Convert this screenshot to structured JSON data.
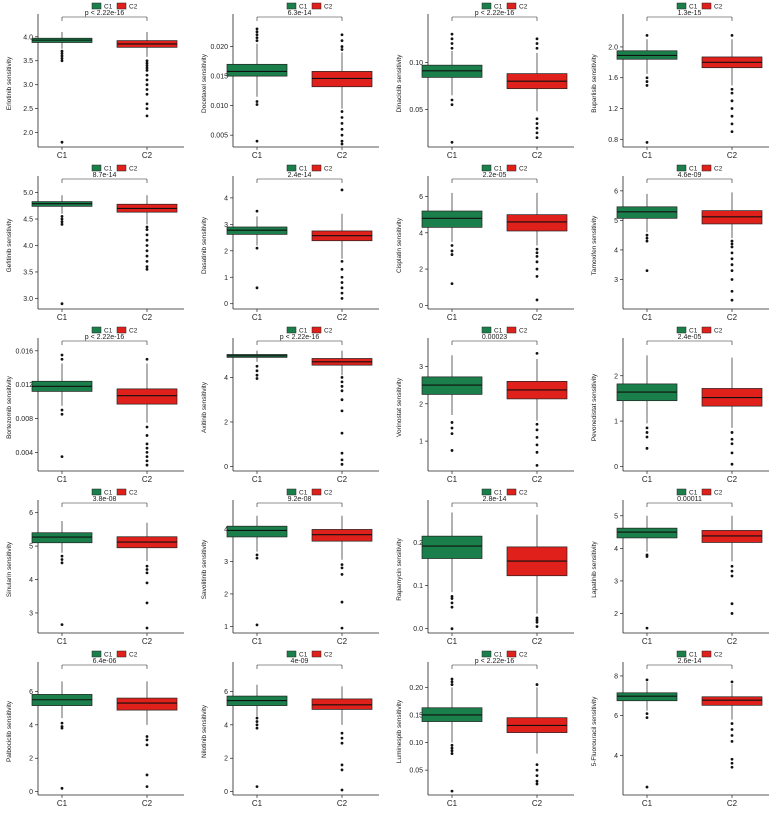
{
  "colors": {
    "C1": "#1a7f4b",
    "C2": "#e0201b"
  },
  "legend": {
    "labels": [
      "C1",
      "C2"
    ]
  },
  "chart_data": [
    {
      "type": "box",
      "ylabel": "Erlotinib sensitivity",
      "pvalue": "p < 2.22e-16",
      "categories": [
        "C1",
        "C2"
      ],
      "ylim": [
        1.7,
        4.35
      ],
      "yticks": [
        2.0,
        2.5,
        3.0,
        3.5,
        4.0
      ],
      "tick_labels": [
        "2.0",
        "2.5",
        "3.0",
        "3.5",
        "4.0"
      ],
      "boxes": [
        {
          "q1": 3.88,
          "median": 3.93,
          "q3": 3.97,
          "wlo": 3.75,
          "whi": 4.1,
          "outliers": [
            3.7,
            3.65,
            3.6,
            3.55,
            3.5,
            1.8
          ]
        },
        {
          "q1": 3.78,
          "median": 3.85,
          "q3": 3.92,
          "wlo": 3.58,
          "whi": 4.1,
          "outliers": [
            3.5,
            3.45,
            3.4,
            3.35,
            3.3,
            3.2,
            3.1,
            3.0,
            2.9,
            2.8,
            2.6,
            2.5,
            2.35
          ]
        }
      ]
    },
    {
      "type": "box",
      "ylabel": "Docetaxel sensitivity",
      "pvalue": "6.3e-14",
      "categories": [
        "C1",
        "C2"
      ],
      "ylim": [
        0.003,
        0.0245
      ],
      "yticks": [
        0.005,
        0.01,
        0.015,
        0.02
      ],
      "tick_labels": [
        "0.005",
        "0.010",
        "0.015",
        "0.020"
      ],
      "boxes": [
        {
          "q1": 0.015,
          "median": 0.0158,
          "q3": 0.017,
          "wlo": 0.0115,
          "whi": 0.0205,
          "outliers": [
            0.021,
            0.0215,
            0.022,
            0.0225,
            0.023,
            0.0107,
            0.0102,
            0.004
          ]
        },
        {
          "q1": 0.0132,
          "median": 0.0146,
          "q3": 0.0158,
          "wlo": 0.0095,
          "whi": 0.019,
          "outliers": [
            0.0195,
            0.02,
            0.021,
            0.022,
            0.009,
            0.008,
            0.007,
            0.006,
            0.005,
            0.004,
            0.0035
          ]
        }
      ]
    },
    {
      "type": "box",
      "ylabel": "Dinaciclib sensitivity",
      "pvalue": "p < 2.22e-16",
      "categories": [
        "C1",
        "C2"
      ],
      "ylim": [
        0.01,
        0.145
      ],
      "yticks": [
        0.05,
        0.1
      ],
      "tick_labels": [
        "0.05",
        "0.10"
      ],
      "boxes": [
        {
          "q1": 0.084,
          "median": 0.091,
          "q3": 0.097,
          "wlo": 0.065,
          "whi": 0.112,
          "outliers": [
            0.115,
            0.12,
            0.125,
            0.13,
            0.06,
            0.055,
            0.015
          ]
        },
        {
          "q1": 0.072,
          "median": 0.08,
          "q3": 0.088,
          "wlo": 0.048,
          "whi": 0.11,
          "outliers": [
            0.115,
            0.12,
            0.125,
            0.04,
            0.035,
            0.03,
            0.025,
            0.02
          ]
        }
      ]
    },
    {
      "type": "box",
      "ylabel": "Buparlisib sensitivity",
      "pvalue": "1.3e-15",
      "categories": [
        "C1",
        "C2"
      ],
      "ylim": [
        0.7,
        2.35
      ],
      "yticks": [
        0.8,
        1.2,
        1.6,
        2.0
      ],
      "tick_labels": [
        "0.8",
        "1.2",
        "1.6",
        "2.0"
      ],
      "boxes": [
        {
          "q1": 1.84,
          "median": 1.89,
          "q3": 1.95,
          "wlo": 1.65,
          "whi": 2.1,
          "outliers": [
            2.15,
            1.6,
            1.55,
            1.5,
            0.76
          ]
        },
        {
          "q1": 1.73,
          "median": 1.8,
          "q3": 1.87,
          "wlo": 1.5,
          "whi": 2.1,
          "outliers": [
            2.15,
            1.45,
            1.4,
            1.3,
            1.2,
            1.1,
            1.0,
            0.9
          ]
        }
      ]
    },
    {
      "type": "box",
      "ylabel": "Gefitinib sensitivity",
      "pvalue": "8.7e-14",
      "categories": [
        "C1",
        "C2"
      ],
      "ylim": [
        2.8,
        5.2
      ],
      "yticks": [
        3.0,
        3.5,
        4.0,
        4.5,
        5.0
      ],
      "tick_labels": [
        "3.0",
        "3.5",
        "4.0",
        "4.5",
        "5.0"
      ],
      "boxes": [
        {
          "q1": 4.74,
          "median": 4.79,
          "q3": 4.83,
          "wlo": 4.6,
          "whi": 4.95,
          "outliers": [
            4.55,
            4.5,
            4.45,
            4.4,
            2.9
          ]
        },
        {
          "q1": 4.63,
          "median": 4.7,
          "q3": 4.78,
          "wlo": 4.4,
          "whi": 4.95,
          "outliers": [
            4.35,
            4.3,
            4.2,
            4.1,
            4.0,
            3.9,
            3.8,
            3.7,
            3.6,
            3.55
          ]
        }
      ]
    },
    {
      "type": "box",
      "ylabel": "Dasatinib sensitivity",
      "pvalue": "2.4e-14",
      "categories": [
        "C1",
        "C2"
      ],
      "ylim": [
        -0.2,
        4.6
      ],
      "yticks": [
        0,
        1,
        2,
        3,
        4
      ],
      "tick_labels": [
        "0",
        "1",
        "2",
        "3",
        "4"
      ],
      "boxes": [
        {
          "q1": 2.62,
          "median": 2.78,
          "q3": 2.9,
          "wlo": 2.2,
          "whi": 3.3,
          "outliers": [
            3.5,
            2.1,
            0.6
          ]
        },
        {
          "q1": 2.38,
          "median": 2.57,
          "q3": 2.75,
          "wlo": 1.7,
          "whi": 3.4,
          "outliers": [
            4.3,
            1.6,
            1.3,
            1.0,
            0.8,
            0.6,
            0.4,
            0.2
          ]
        }
      ]
    },
    {
      "type": "box",
      "ylabel": "Cisplatin sensitivity",
      "pvalue": "2.2e-05",
      "categories": [
        "C1",
        "C2"
      ],
      "ylim": [
        -0.2,
        6.8
      ],
      "yticks": [
        0,
        2,
        4,
        6
      ],
      "tick_labels": [
        "0",
        "2",
        "4",
        "6"
      ],
      "boxes": [
        {
          "q1": 4.3,
          "median": 4.8,
          "q3": 5.2,
          "wlo": 3.5,
          "whi": 6.2,
          "outliers": [
            3.3,
            3.0,
            2.8,
            1.2
          ]
        },
        {
          "q1": 4.1,
          "median": 4.6,
          "q3": 5.0,
          "wlo": 3.3,
          "whi": 6.2,
          "outliers": [
            3.1,
            2.9,
            2.7,
            2.4,
            2.0,
            1.6,
            0.3
          ]
        }
      ]
    },
    {
      "type": "box",
      "ylabel": "Tamoxifen sensitivity",
      "pvalue": "4.6e-09",
      "categories": [
        "C1",
        "C2"
      ],
      "ylim": [
        2.0,
        6.3
      ],
      "yticks": [
        3,
        4,
        5,
        6
      ],
      "tick_labels": [
        "3",
        "4",
        "5",
        "6"
      ],
      "boxes": [
        {
          "q1": 5.07,
          "median": 5.29,
          "q3": 5.46,
          "wlo": 4.6,
          "whi": 5.9,
          "outliers": [
            4.5,
            4.4,
            4.3,
            3.3
          ]
        },
        {
          "q1": 4.88,
          "median": 5.12,
          "q3": 5.33,
          "wlo": 4.4,
          "whi": 5.95,
          "outliers": [
            4.3,
            4.2,
            4.1,
            3.9,
            3.7,
            3.5,
            3.3,
            3.0,
            2.6,
            2.3
          ]
        }
      ]
    },
    {
      "type": "box",
      "ylabel": "Bortezomib sensitivity",
      "pvalue": "p < 2.22e-16",
      "categories": [
        "C1",
        "C2"
      ],
      "ylim": [
        0.0018,
        0.0168
      ],
      "yticks": [
        0.004,
        0.008,
        0.012,
        0.016
      ],
      "tick_labels": [
        "0.004",
        "0.008",
        "0.012",
        "0.016"
      ],
      "boxes": [
        {
          "q1": 0.0112,
          "median": 0.0118,
          "q3": 0.0124,
          "wlo": 0.0095,
          "whi": 0.0145,
          "outliers": [
            0.015,
            0.0155,
            0.009,
            0.0085,
            0.0035
          ]
        },
        {
          "q1": 0.0097,
          "median": 0.0107,
          "q3": 0.0115,
          "wlo": 0.0075,
          "whi": 0.0145,
          "outliers": [
            0.015,
            0.007,
            0.006,
            0.005,
            0.0045,
            0.004,
            0.0035,
            0.003,
            0.0025
          ]
        }
      ]
    },
    {
      "type": "box",
      "ylabel": "Axitinib sensitivity",
      "pvalue": "p < 2.22e-16",
      "categories": [
        "C1",
        "C2"
      ],
      "ylim": [
        -0.2,
        5.5
      ],
      "yticks": [
        0,
        2,
        4
      ],
      "tick_labels": [
        "0",
        "2",
        "4"
      ],
      "boxes": [
        {
          "q1": 4.9,
          "median": 4.97,
          "q3": 5.03,
          "wlo": 4.7,
          "whi": 5.2,
          "outliers": [
            4.5,
            4.3,
            4.1,
            3.95
          ]
        },
        {
          "q1": 4.55,
          "median": 4.7,
          "q3": 4.85,
          "wlo": 4.1,
          "whi": 5.2,
          "outliers": [
            4.0,
            3.8,
            3.6,
            3.4,
            3.0,
            2.5,
            1.5,
            0.6,
            0.3,
            0.1
          ]
        }
      ]
    },
    {
      "type": "box",
      "ylabel": "Vorinostat sensitivity",
      "pvalue": "0.00023",
      "categories": [
        "C1",
        "C2"
      ],
      "ylim": [
        0.2,
        3.6
      ],
      "yticks": [
        1,
        2,
        3
      ],
      "tick_labels": [
        "1",
        "2",
        "3"
      ],
      "boxes": [
        {
          "q1": 2.25,
          "median": 2.5,
          "q3": 2.72,
          "wlo": 1.7,
          "whi": 3.3,
          "outliers": [
            1.5,
            1.35,
            1.2,
            0.75
          ]
        },
        {
          "q1": 2.13,
          "median": 2.37,
          "q3": 2.6,
          "wlo": 1.55,
          "whi": 3.2,
          "outliers": [
            3.35,
            1.45,
            1.3,
            1.1,
            0.9,
            0.7,
            0.35
          ]
        }
      ]
    },
    {
      "type": "box",
      "ylabel": "Pevonedistat sensitivity",
      "pvalue": "2.4e-05",
      "categories": [
        "C1",
        "C2"
      ],
      "ylim": [
        -0.1,
        2.7
      ],
      "yticks": [
        0,
        1,
        2
      ],
      "tick_labels": [
        "0",
        "1",
        "2"
      ],
      "boxes": [
        {
          "q1": 1.45,
          "median": 1.64,
          "q3": 1.82,
          "wlo": 0.95,
          "whi": 2.45,
          "outliers": [
            0.85,
            0.75,
            0.65,
            0.4
          ]
        },
        {
          "q1": 1.33,
          "median": 1.52,
          "q3": 1.72,
          "wlo": 0.85,
          "whi": 2.4,
          "outliers": [
            0.75,
            0.6,
            0.5,
            0.3,
            0.05
          ]
        }
      ]
    },
    {
      "type": "box",
      "ylabel": "Sinularin sensitivity",
      "pvalue": "3.8e-08",
      "categories": [
        "C1",
        "C2"
      ],
      "ylim": [
        2.4,
        6.2
      ],
      "yticks": [
        3,
        4,
        5,
        6
      ],
      "tick_labels": [
        "3",
        "4",
        "5",
        "6"
      ],
      "boxes": [
        {
          "q1": 5.1,
          "median": 5.27,
          "q3": 5.4,
          "wlo": 4.8,
          "whi": 5.75,
          "outliers": [
            4.7,
            4.6,
            4.5,
            2.65
          ]
        },
        {
          "q1": 4.95,
          "median": 5.12,
          "q3": 5.28,
          "wlo": 4.55,
          "whi": 5.7,
          "outliers": [
            4.4,
            4.3,
            4.2,
            3.9,
            3.3,
            2.55
          ]
        }
      ]
    },
    {
      "type": "box",
      "ylabel": "Savolitinib sensitivity",
      "pvalue": "9.2e-08",
      "categories": [
        "C1",
        "C2"
      ],
      "ylim": [
        0.8,
        4.7
      ],
      "yticks": [
        1,
        2,
        3,
        4
      ],
      "tick_labels": [
        "1",
        "2",
        "3",
        "4"
      ],
      "boxes": [
        {
          "q1": 3.75,
          "median": 3.95,
          "q3": 4.08,
          "wlo": 3.3,
          "whi": 4.4,
          "outliers": [
            3.2,
            3.1,
            1.05
          ]
        },
        {
          "q1": 3.62,
          "median": 3.82,
          "q3": 3.98,
          "wlo": 3.05,
          "whi": 4.4,
          "outliers": [
            2.9,
            2.8,
            2.6,
            1.75,
            0.95
          ]
        }
      ]
    },
    {
      "type": "box",
      "ylabel": "Rapamycin sensitivity",
      "pvalue": "2.8e-14",
      "categories": [
        "C1",
        "C2"
      ],
      "ylim": [
        -0.01,
        0.285
      ],
      "yticks": [
        0.0,
        0.1,
        0.2
      ],
      "tick_labels": [
        "0.0",
        "0.1",
        "0.2"
      ],
      "boxes": [
        {
          "q1": 0.163,
          "median": 0.192,
          "q3": 0.215,
          "wlo": 0.085,
          "whi": 0.27,
          "outliers": [
            0.075,
            0.07,
            0.06,
            0.05,
            0.0
          ]
        },
        {
          "q1": 0.123,
          "median": 0.157,
          "q3": 0.19,
          "wlo": 0.035,
          "whi": 0.265,
          "outliers": [
            0.025,
            0.02,
            0.015,
            0.005
          ]
        }
      ]
    },
    {
      "type": "box",
      "ylabel": "Lapatinib sensitivity",
      "pvalue": "0.00011",
      "categories": [
        "C1",
        "C2"
      ],
      "ylim": [
        1.4,
        5.3
      ],
      "yticks": [
        2,
        3,
        4,
        5
      ],
      "tick_labels": [
        "2",
        "3",
        "4",
        "5"
      ],
      "boxes": [
        {
          "q1": 4.32,
          "median": 4.5,
          "q3": 4.62,
          "wlo": 3.9,
          "whi": 5.0,
          "outliers": [
            3.8,
            3.75,
            1.55
          ]
        },
        {
          "q1": 4.18,
          "median": 4.38,
          "q3": 4.55,
          "wlo": 3.6,
          "whi": 5.0,
          "outliers": [
            3.45,
            3.3,
            3.15,
            2.3,
            2.0
          ]
        }
      ]
    },
    {
      "type": "box",
      "ylabel": "Palbociclib sensitivity",
      "pvalue": "6.4e-06",
      "categories": [
        "C1",
        "C2"
      ],
      "ylim": [
        -0.2,
        7.4
      ],
      "yticks": [
        0,
        2,
        4,
        6
      ],
      "tick_labels": [
        "0",
        "2",
        "4",
        "6"
      ],
      "boxes": [
        {
          "q1": 5.15,
          "median": 5.5,
          "q3": 5.82,
          "wlo": 4.4,
          "whi": 6.6,
          "outliers": [
            4.1,
            3.9,
            3.8,
            0.2
          ]
        },
        {
          "q1": 4.88,
          "median": 5.3,
          "q3": 5.6,
          "wlo": 4.0,
          "whi": 6.6,
          "outliers": [
            3.3,
            3.1,
            2.8,
            1.0,
            0.3
          ]
        }
      ]
    },
    {
      "type": "box",
      "ylabel": "Nilotinib sensitivity",
      "pvalue": "4e-09",
      "categories": [
        "C1",
        "C2"
      ],
      "ylim": [
        -0.2,
        7.4
      ],
      "yticks": [
        0,
        2,
        4,
        6
      ],
      "tick_labels": [
        "0",
        "2",
        "4",
        "6"
      ],
      "boxes": [
        {
          "q1": 5.15,
          "median": 5.45,
          "q3": 5.72,
          "wlo": 4.5,
          "whi": 6.4,
          "outliers": [
            4.4,
            4.2,
            4.0,
            3.8,
            0.3
          ]
        },
        {
          "q1": 4.92,
          "median": 5.2,
          "q3": 5.55,
          "wlo": 4.0,
          "whi": 6.3,
          "outliers": [
            3.5,
            3.2,
            2.9,
            1.6,
            1.3,
            0.1
          ]
        }
      ]
    },
    {
      "type": "box",
      "ylabel": "Luminespib sensitivity",
      "pvalue": "p < 2.22e-16",
      "categories": [
        "C1",
        "C2"
      ],
      "ylim": [
        0.005,
        0.235
      ],
      "yticks": [
        0.05,
        0.1,
        0.15,
        0.2
      ],
      "tick_labels": [
        "0.05",
        "0.10",
        "0.15",
        "0.20"
      ],
      "boxes": [
        {
          "q1": 0.138,
          "median": 0.15,
          "q3": 0.163,
          "wlo": 0.1,
          "whi": 0.2,
          "outliers": [
            0.205,
            0.21,
            0.215,
            0.095,
            0.09,
            0.085,
            0.08,
            0.012
          ]
        },
        {
          "q1": 0.118,
          "median": 0.131,
          "q3": 0.145,
          "wlo": 0.08,
          "whi": 0.2,
          "outliers": [
            0.205,
            0.06,
            0.05,
            0.04,
            0.03,
            0.025
          ]
        }
      ]
    },
    {
      "type": "box",
      "ylabel": "5-Fluorouracil sensitivity",
      "pvalue": "2.6e-14",
      "categories": [
        "C1",
        "C2"
      ],
      "ylim": [
        2.0,
        8.4
      ],
      "yticks": [
        4,
        6,
        8
      ],
      "tick_labels": [
        "4",
        "6",
        "8"
      ],
      "boxes": [
        {
          "q1": 6.75,
          "median": 6.98,
          "q3": 7.15,
          "wlo": 6.25,
          "whi": 7.7,
          "outliers": [
            7.8,
            6.1,
            5.9,
            2.4
          ]
        },
        {
          "q1": 6.52,
          "median": 6.78,
          "q3": 6.95,
          "wlo": 5.8,
          "whi": 7.6,
          "outliers": [
            7.7,
            5.6,
            5.3,
            5.0,
            4.7,
            3.8,
            3.6,
            3.4
          ]
        }
      ]
    }
  ]
}
